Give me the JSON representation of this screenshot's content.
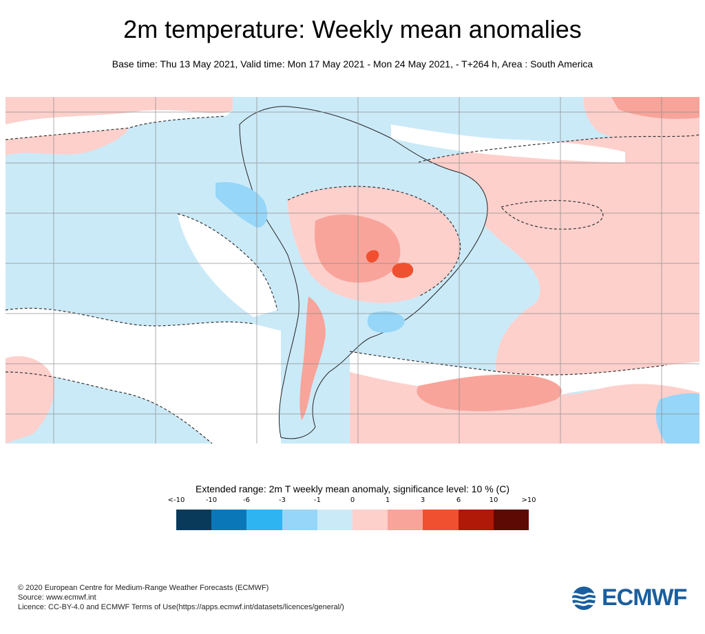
{
  "header": {
    "title": "2m temperature: Weekly mean anomalies",
    "subtitle": "Base time: Thu 13 May 2021, Valid time: Mon 17 May 2021 - Mon 24 May 2021, - T+264 h, Area : South America"
  },
  "legend": {
    "title": "Extended range: 2m T weekly mean anomaly, significance level: 10 % (C)",
    "ticks": [
      "<-10",
      "-10",
      "-6",
      "-3",
      "-1",
      "0",
      "1",
      "3",
      "6",
      "10",
      ">10"
    ],
    "colors": [
      "#0a3a5a",
      "#0a78b8",
      "#2eb4f0",
      "#96d6f8",
      "#cbeaf8",
      "#fdd0cc",
      "#f8a49a",
      "#f05030",
      "#b01808",
      "#5e0a04"
    ]
  },
  "map": {
    "area": "South America",
    "colors": {
      "ocean_base": "#cbeaf8",
      "neutral": "#ffffff",
      "warm_light": "#fdd0cc",
      "warm_mid": "#f8a49a",
      "warm_strong": "#f05030",
      "cool_mid": "#96d6f8",
      "gridline": "#8a8a8a",
      "coastline": "#222222"
    }
  },
  "footer": {
    "copyright": "© 2020 European Centre for Medium-Range Weather Forecasts (ECMWF)",
    "source": "Source: www.ecmwf.int",
    "licence": "Licence: CC-BY-4.0 and ECMWF Terms of Use(https://apps.ecmwf.int/datasets/licences/general/)"
  },
  "logo": {
    "text": "ECMWF"
  }
}
